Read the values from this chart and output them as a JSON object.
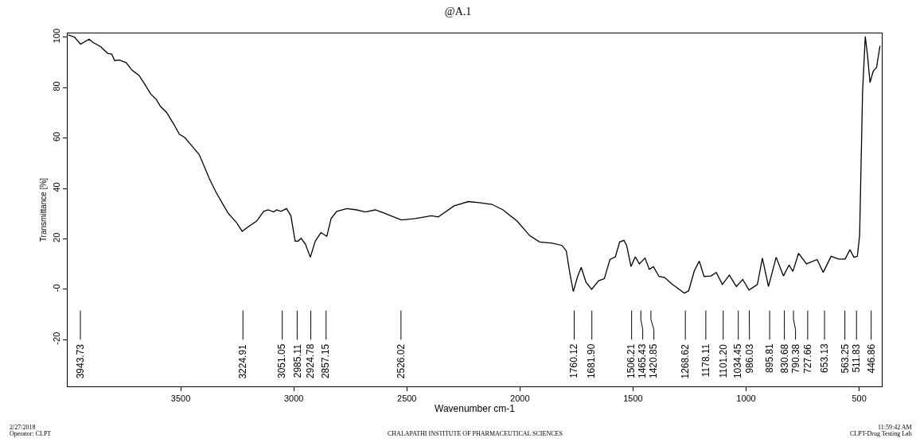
{
  "chart_data": {
    "type": "line",
    "title": "@A.1",
    "xlabel": "Wavenumber cm-1",
    "ylabel": "Transmittance [%]",
    "xlim": [
      4000,
      400
    ],
    "xticks": [
      3500,
      3000,
      2500,
      2000,
      1500,
      1000,
      500
    ],
    "ylim": [
      -38.5,
      101.5
    ],
    "yticks": [
      -20,
      {
        "value": 0,
        "label": "-0"
      },
      20,
      40,
      60,
      80,
      100
    ],
    "marker": "none",
    "line_style": "solid",
    "series": [
      {
        "color": "#000000",
        "x": [
          3998,
          3969,
          3943,
          3905,
          3886,
          3855,
          3823,
          3805,
          3792,
          3772,
          3741,
          3715,
          3684,
          3658,
          3633,
          3608,
          3589,
          3563,
          3532,
          3506,
          3481,
          3449,
          3418,
          3399,
          3373,
          3342,
          3317,
          3291,
          3253,
          3228,
          3203,
          3165,
          3133,
          3114,
          3089,
          3076,
          3057,
          3032,
          3013,
          2994,
          2981,
          2968,
          2949,
          2927,
          2905,
          2880,
          2854,
          2835,
          2810,
          2766,
          2722,
          2684,
          2640,
          2602,
          2525,
          2462,
          2392,
          2361,
          2291,
          2228,
          2174,
          2124,
          2075,
          2012,
          1957,
          1913,
          1857,
          1814,
          1795,
          1779,
          1764,
          1745,
          1729,
          1708,
          1683,
          1652,
          1627,
          1602,
          1578,
          1559,
          1540,
          1528,
          1509,
          1490,
          1472,
          1447,
          1428,
          1410,
          1385,
          1360,
          1329,
          1273,
          1254,
          1229,
          1207,
          1186,
          1155,
          1132,
          1105,
          1074,
          1043,
          1015,
          987,
          950,
          928,
          901,
          867,
          835,
          810,
          793,
          768,
          733,
          686,
          659,
          624,
          591,
          562,
          541,
          523,
          508,
          498,
          485,
          473,
          463,
          452,
          438,
          423,
          408
        ],
        "values": [
          100.9,
          100,
          97.2,
          99.2,
          97.8,
          96.3,
          93.6,
          93.3,
          90.7,
          91,
          89.9,
          86.9,
          84.8,
          81.2,
          77.5,
          75.3,
          72.5,
          70.2,
          65.7,
          61.5,
          60.1,
          56.7,
          53.4,
          49.4,
          43.8,
          38.2,
          34.3,
          30.3,
          26.4,
          23,
          24.7,
          27,
          30.9,
          31.5,
          30.7,
          31.5,
          30.9,
          32,
          29.2,
          19.1,
          19.1,
          20.2,
          18,
          12.7,
          19.1,
          22.5,
          21,
          28.1,
          30.9,
          32,
          31.5,
          30.7,
          31.5,
          30.3,
          27.5,
          28.1,
          29.2,
          28.7,
          33.1,
          34.8,
          34.3,
          33.7,
          31.5,
          27,
          21.3,
          18.8,
          18.3,
          17.4,
          15.2,
          6.2,
          -0.9,
          5.1,
          8.7,
          2.8,
          0,
          3.4,
          4.2,
          11.8,
          12.9,
          18.8,
          19.4,
          17.4,
          9,
          12.9,
          10.1,
          12.4,
          7.9,
          9,
          5.1,
          4.7,
          2.2,
          -1.5,
          -0.6,
          7.3,
          11.2,
          5.1,
          5.3,
          6.7,
          1.9,
          5.6,
          1.1,
          3.9,
          -0.3,
          1.9,
          12.4,
          1.1,
          12.7,
          5.3,
          9.6,
          7.1,
          14.3,
          10.1,
          11.8,
          6.7,
          13.1,
          12,
          12,
          15.7,
          12.7,
          13.1,
          21.3,
          78.1,
          100.3,
          92.7,
          82,
          86.5,
          88,
          96.6
        ]
      }
    ],
    "ref_lines": [
      {
        "axis": "x",
        "value": 3943.73,
        "label": "3943.73"
      },
      {
        "axis": "x",
        "value": 3224.91,
        "label": "3224.91"
      },
      {
        "axis": "x",
        "value": 3051.05,
        "label": "3051.05"
      },
      {
        "axis": "x",
        "value": 2985.11,
        "label": "2985.11"
      },
      {
        "axis": "x",
        "value": 2924.78,
        "label": "2924.78"
      },
      {
        "axis": "x",
        "value": 2857.15,
        "label": "2857.15"
      },
      {
        "axis": "x",
        "value": 2526.02,
        "label": "2526.02"
      },
      {
        "axis": "x",
        "value": 1760.12,
        "label": "1760.12"
      },
      {
        "axis": "x",
        "value": 1681.9,
        "label": "1681.90"
      },
      {
        "axis": "x",
        "value": 1506.21,
        "label": "1506.21"
      },
      {
        "axis": "x",
        "value": 1465.43,
        "label": "1465.43"
      },
      {
        "axis": "x",
        "value": 1420.85,
        "label": "1420.85"
      },
      {
        "axis": "x",
        "value": 1268.62,
        "label": "1268.62"
      },
      {
        "axis": "x",
        "value": 1178.11,
        "label": "1178.11"
      },
      {
        "axis": "x",
        "value": 1101.2,
        "label": "1101.20"
      },
      {
        "axis": "x",
        "value": 1034.45,
        "label": "1034.45"
      },
      {
        "axis": "x",
        "value": 986.03,
        "label": "986.03"
      },
      {
        "axis": "x",
        "value": 895.81,
        "label": "895.81"
      },
      {
        "axis": "x",
        "value": 830.68,
        "label": "830.68"
      },
      {
        "axis": "x",
        "value": 790.38,
        "label": "790.38"
      },
      {
        "axis": "x",
        "value": 727.66,
        "label": "727.66"
      },
      {
        "axis": "x",
        "value": 653.13,
        "label": "653.13"
      },
      {
        "axis": "x",
        "value": 563.25,
        "label": "563.25"
      },
      {
        "axis": "x",
        "value": 511.83,
        "label": "511.83"
      },
      {
        "axis": "x",
        "value": 446.86,
        "label": "446.86"
      }
    ],
    "annotations": [
      "2/27/2018",
      "Operator: CLPT",
      "CHALAPATHI INSTITUTE OF PHARMACEUTICAL SCIENCES",
      "11:59:42 AM",
      "CLPT-Drug Testing Lab"
    ]
  }
}
